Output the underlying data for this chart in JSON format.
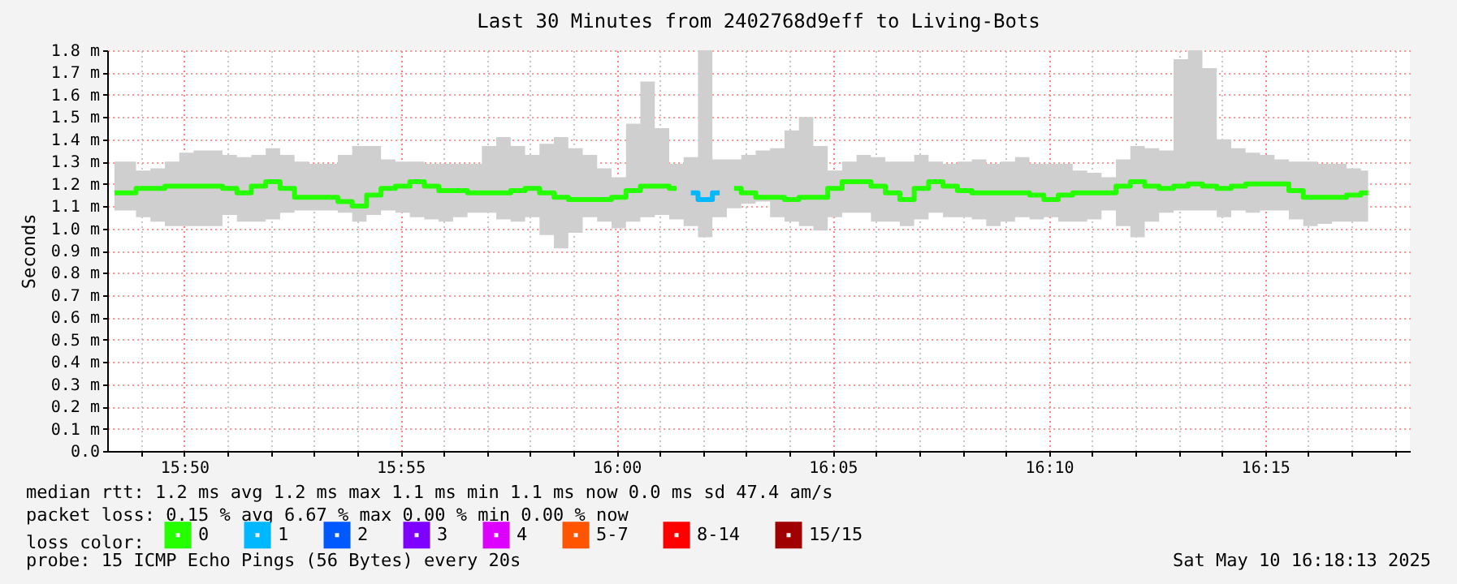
{
  "chart_data": {
    "type": "step",
    "title": "Last 30 Minutes from 2402768d9eff to Living-Bots",
    "ylabel": "Seconds",
    "legend_title": "loss color:",
    "legend": "bottom",
    "grid": true,
    "line_style": "solid",
    "marker": "none",
    "x": [
      "2025-05-10T15:48:23",
      "2025-05-10T15:48:43",
      "2025-05-10T15:49:03",
      "2025-05-10T15:49:23",
      "2025-05-10T15:49:43",
      "2025-05-10T15:50:03",
      "2025-05-10T15:50:23",
      "2025-05-10T15:50:43",
      "2025-05-10T15:51:03",
      "2025-05-10T15:51:23",
      "2025-05-10T15:51:43",
      "2025-05-10T15:52:03",
      "2025-05-10T15:52:23",
      "2025-05-10T15:52:43",
      "2025-05-10T15:53:03",
      "2025-05-10T15:53:23",
      "2025-05-10T15:53:43",
      "2025-05-10T15:54:03",
      "2025-05-10T15:54:23",
      "2025-05-10T15:54:43",
      "2025-05-10T15:55:03",
      "2025-05-10T15:55:23",
      "2025-05-10T15:55:43",
      "2025-05-10T15:56:03",
      "2025-05-10T15:56:23",
      "2025-05-10T15:56:43",
      "2025-05-10T15:57:03",
      "2025-05-10T15:57:23",
      "2025-05-10T15:57:43",
      "2025-05-10T15:58:03",
      "2025-05-10T15:58:23",
      "2025-05-10T15:58:43",
      "2025-05-10T15:59:03",
      "2025-05-10T15:59:23",
      "2025-05-10T15:59:43",
      "2025-05-10T16:00:03",
      "2025-05-10T16:00:23",
      "2025-05-10T16:00:43",
      "2025-05-10T16:01:03",
      "2025-05-10T16:01:23",
      "2025-05-10T16:01:43",
      "2025-05-10T16:02:03",
      "2025-05-10T16:02:23",
      "2025-05-10T16:02:43",
      "2025-05-10T16:03:03",
      "2025-05-10T16:03:23",
      "2025-05-10T16:03:43",
      "2025-05-10T16:04:03",
      "2025-05-10T16:04:23",
      "2025-05-10T16:04:43",
      "2025-05-10T16:05:03",
      "2025-05-10T16:05:23",
      "2025-05-10T16:05:43",
      "2025-05-10T16:06:03",
      "2025-05-10T16:06:23",
      "2025-05-10T16:06:43",
      "2025-05-10T16:07:03",
      "2025-05-10T16:07:23",
      "2025-05-10T16:07:43",
      "2025-05-10T16:08:03",
      "2025-05-10T16:08:23",
      "2025-05-10T16:08:43",
      "2025-05-10T16:09:03",
      "2025-05-10T16:09:23",
      "2025-05-10T16:09:43",
      "2025-05-10T16:10:03",
      "2025-05-10T16:10:23",
      "2025-05-10T16:10:43",
      "2025-05-10T16:11:03",
      "2025-05-10T16:11:23",
      "2025-05-10T16:11:43",
      "2025-05-10T16:12:03",
      "2025-05-10T16:12:23",
      "2025-05-10T16:12:43",
      "2025-05-10T16:13:03",
      "2025-05-10T16:13:23",
      "2025-05-10T16:13:43",
      "2025-05-10T16:14:03",
      "2025-05-10T16:14:23",
      "2025-05-10T16:14:43",
      "2025-05-10T16:15:03",
      "2025-05-10T16:15:23",
      "2025-05-10T16:15:43",
      "2025-05-10T16:16:03",
      "2025-05-10T16:16:23",
      "2025-05-10T16:16:43",
      "2025-05-10T16:17:03",
      "2025-05-10T16:17:23"
    ],
    "series": [
      {
        "name": "0",
        "color": "#26ff00",
        "values": [
          1.16,
          1.16,
          1.18,
          1.18,
          1.19,
          1.19,
          1.19,
          1.19,
          1.18,
          1.16,
          1.19,
          1.21,
          1.18,
          1.14,
          1.14,
          1.14,
          1.12,
          1.1,
          1.15,
          1.18,
          1.19,
          1.21,
          1.19,
          1.17,
          1.17,
          1.16,
          1.16,
          1.16,
          1.17,
          1.18,
          1.16,
          1.14,
          1.13,
          1.13,
          1.13,
          1.14,
          1.17,
          1.19,
          1.19,
          1.18,
          null,
          null,
          null,
          1.18,
          1.16,
          1.14,
          1.14,
          1.13,
          1.14,
          1.14,
          1.18,
          1.21,
          1.21,
          1.19,
          1.16,
          1.13,
          1.18,
          1.21,
          1.19,
          1.17,
          1.16,
          1.16,
          1.16,
          1.16,
          1.15,
          1.13,
          1.15,
          1.16,
          1.16,
          1.16,
          1.19,
          1.21,
          1.19,
          1.18,
          1.19,
          1.2,
          1.19,
          1.18,
          1.19,
          1.2,
          1.2,
          1.2,
          1.17,
          1.14,
          1.14,
          1.14,
          1.15,
          1.16
        ],
        "lower": [
          1.08,
          1.08,
          1.05,
          1.03,
          1.01,
          1.01,
          1.01,
          1.01,
          1.06,
          1.03,
          1.03,
          1.04,
          1.07,
          1.08,
          1.08,
          1.08,
          1.07,
          1.03,
          1.06,
          1.08,
          1.07,
          1.05,
          1.04,
          1.03,
          1.05,
          1.07,
          1.07,
          1.04,
          1.03,
          1.05,
          0.97,
          0.91,
          0.98,
          1.05,
          1.03,
          1.0,
          1.03,
          1.05,
          1.06,
          1.04,
          1.01,
          0.96,
          1.05,
          1.09,
          1.11,
          1.12,
          1.05,
          1.03,
          1.01,
          0.99,
          1.05,
          1.07,
          1.07,
          1.03,
          1.03,
          1.01,
          1.04,
          1.07,
          1.05,
          1.05,
          1.04,
          1.01,
          1.03,
          1.05,
          1.04,
          1.05,
          1.03,
          1.03,
          1.04,
          1.08,
          1.01,
          0.96,
          1.03,
          1.07,
          1.08,
          1.08,
          1.08,
          1.05,
          1.08,
          1.07,
          1.08,
          1.08,
          1.04,
          1.01,
          1.02,
          1.03,
          1.03,
          1.03
        ],
        "upper": [
          1.3,
          1.3,
          1.26,
          1.27,
          1.3,
          1.34,
          1.35,
          1.35,
          1.33,
          1.32,
          1.33,
          1.36,
          1.33,
          1.3,
          1.29,
          1.29,
          1.33,
          1.37,
          1.37,
          1.31,
          1.3,
          1.3,
          1.29,
          1.29,
          1.29,
          1.29,
          1.37,
          1.41,
          1.37,
          1.33,
          1.38,
          1.41,
          1.36,
          1.33,
          1.27,
          1.23,
          1.47,
          1.66,
          1.45,
          1.29,
          1.32,
          1.8,
          1.31,
          1.31,
          1.33,
          1.35,
          1.36,
          1.44,
          1.5,
          1.37,
          1.26,
          1.3,
          1.33,
          1.32,
          1.3,
          1.3,
          1.33,
          1.3,
          1.29,
          1.3,
          1.31,
          1.29,
          1.3,
          1.32,
          1.29,
          1.29,
          1.29,
          1.26,
          1.25,
          1.23,
          1.31,
          1.37,
          1.36,
          1.35,
          1.76,
          1.8,
          1.72,
          1.4,
          1.36,
          1.34,
          1.33,
          1.31,
          1.3,
          1.3,
          1.29,
          1.29,
          1.27,
          1.26
        ]
      },
      {
        "name": "1",
        "color": "#00b8ff",
        "values": [
          null,
          null,
          null,
          null,
          null,
          null,
          null,
          null,
          null,
          null,
          null,
          null,
          null,
          null,
          null,
          null,
          null,
          null,
          null,
          null,
          null,
          null,
          null,
          null,
          null,
          null,
          null,
          null,
          null,
          null,
          null,
          null,
          null,
          null,
          null,
          null,
          null,
          null,
          null,
          null,
          1.16,
          1.13,
          1.16,
          null,
          null,
          null,
          null,
          null,
          null,
          null,
          null,
          null,
          null,
          null,
          null,
          null,
          null,
          null,
          null,
          null,
          null,
          null,
          null,
          null,
          null,
          null,
          null,
          null,
          null,
          null,
          null,
          null,
          null,
          null,
          null,
          null,
          null,
          null,
          null,
          null,
          null,
          null,
          null,
          null,
          null,
          null,
          null,
          null
        ]
      },
      {
        "name": "2",
        "color": "#0059ff",
        "values": [
          null,
          null,
          null,
          null,
          null,
          null,
          null,
          null,
          null,
          null,
          null,
          null,
          null,
          null,
          null,
          null,
          null,
          null,
          null,
          null,
          null,
          null,
          null,
          null,
          null,
          null,
          null,
          null,
          null,
          null,
          null,
          null,
          null,
          null,
          null,
          null,
          null,
          null,
          null,
          null,
          null,
          null,
          null,
          null,
          null,
          null,
          null,
          null,
          null,
          null,
          null,
          null,
          null,
          null,
          null,
          null,
          null,
          null,
          null,
          null,
          null,
          null,
          null,
          null,
          null,
          null,
          null,
          null,
          null,
          null,
          null,
          null,
          null,
          null,
          null,
          null,
          null,
          null,
          null,
          null,
          null,
          null,
          null,
          null,
          null,
          null,
          null,
          null
        ]
      },
      {
        "name": "3",
        "color": "#7e00ff",
        "values": [
          null,
          null,
          null,
          null,
          null,
          null,
          null,
          null,
          null,
          null,
          null,
          null,
          null,
          null,
          null,
          null,
          null,
          null,
          null,
          null,
          null,
          null,
          null,
          null,
          null,
          null,
          null,
          null,
          null,
          null,
          null,
          null,
          null,
          null,
          null,
          null,
          null,
          null,
          null,
          null,
          null,
          null,
          null,
          null,
          null,
          null,
          null,
          null,
          null,
          null,
          null,
          null,
          null,
          null,
          null,
          null,
          null,
          null,
          null,
          null,
          null,
          null,
          null,
          null,
          null,
          null,
          null,
          null,
          null,
          null,
          null,
          null,
          null,
          null,
          null,
          null,
          null,
          null,
          null,
          null,
          null,
          null,
          null,
          null,
          null,
          null,
          null,
          null
        ]
      },
      {
        "name": "4",
        "color": "#dd00ff",
        "values": [
          null,
          null,
          null,
          null,
          null,
          null,
          null,
          null,
          null,
          null,
          null,
          null,
          null,
          null,
          null,
          null,
          null,
          null,
          null,
          null,
          null,
          null,
          null,
          null,
          null,
          null,
          null,
          null,
          null,
          null,
          null,
          null,
          null,
          null,
          null,
          null,
          null,
          null,
          null,
          null,
          null,
          null,
          null,
          null,
          null,
          null,
          null,
          null,
          null,
          null,
          null,
          null,
          null,
          null,
          null,
          null,
          null,
          null,
          null,
          null,
          null,
          null,
          null,
          null,
          null,
          null,
          null,
          null,
          null,
          null,
          null,
          null,
          null,
          null,
          null,
          null,
          null,
          null,
          null,
          null,
          null,
          null,
          null,
          null,
          null,
          null,
          null,
          null
        ]
      },
      {
        "name": "5-7",
        "color": "#ff5500",
        "values": [
          null,
          null,
          null,
          null,
          null,
          null,
          null,
          null,
          null,
          null,
          null,
          null,
          null,
          null,
          null,
          null,
          null,
          null,
          null,
          null,
          null,
          null,
          null,
          null,
          null,
          null,
          null,
          null,
          null,
          null,
          null,
          null,
          null,
          null,
          null,
          null,
          null,
          null,
          null,
          null,
          null,
          null,
          null,
          null,
          null,
          null,
          null,
          null,
          null,
          null,
          null,
          null,
          null,
          null,
          null,
          null,
          null,
          null,
          null,
          null,
          null,
          null,
          null,
          null,
          null,
          null,
          null,
          null,
          null,
          null,
          null,
          null,
          null,
          null,
          null,
          null,
          null,
          null,
          null,
          null,
          null,
          null,
          null,
          null,
          null,
          null,
          null,
          null
        ]
      },
      {
        "name": "8-14",
        "color": "#ff0000",
        "values": [
          null,
          null,
          null,
          null,
          null,
          null,
          null,
          null,
          null,
          null,
          null,
          null,
          null,
          null,
          null,
          null,
          null,
          null,
          null,
          null,
          null,
          null,
          null,
          null,
          null,
          null,
          null,
          null,
          null,
          null,
          null,
          null,
          null,
          null,
          null,
          null,
          null,
          null,
          null,
          null,
          null,
          null,
          null,
          null,
          null,
          null,
          null,
          null,
          null,
          null,
          null,
          null,
          null,
          null,
          null,
          null,
          null,
          null,
          null,
          null,
          null,
          null,
          null,
          null,
          null,
          null,
          null,
          null,
          null,
          null,
          null,
          null,
          null,
          null,
          null,
          null,
          null,
          null,
          null,
          null,
          null,
          null,
          null,
          null,
          null,
          null,
          null,
          null
        ]
      },
      {
        "name": "15/15",
        "color": "#a10000",
        "values": [
          null,
          null,
          null,
          null,
          null,
          null,
          null,
          null,
          null,
          null,
          null,
          null,
          null,
          null,
          null,
          null,
          null,
          null,
          null,
          null,
          null,
          null,
          null,
          null,
          null,
          null,
          null,
          null,
          null,
          null,
          null,
          null,
          null,
          null,
          null,
          null,
          null,
          null,
          null,
          null,
          null,
          null,
          null,
          null,
          null,
          null,
          null,
          null,
          null,
          null,
          null,
          null,
          null,
          null,
          null,
          null,
          null,
          null,
          null,
          null,
          null,
          null,
          null,
          null,
          null,
          null,
          null,
          null,
          null,
          null,
          null,
          null,
          null,
          null,
          null,
          null,
          null,
          null,
          null,
          null,
          null,
          null,
          null,
          null,
          null,
          null,
          null,
          null
        ]
      }
    ],
    "xlim": [
      "2025-05-10T15:48:13",
      "2025-05-10T16:18:21"
    ],
    "xticks": [
      {
        "value": "2025-05-10T15:49",
        "label": null
      },
      {
        "value": "2025-05-10T15:50",
        "label": "15:50"
      },
      {
        "value": "2025-05-10T15:51",
        "label": null
      },
      {
        "value": "2025-05-10T15:52",
        "label": null
      },
      {
        "value": "2025-05-10T15:53",
        "label": null
      },
      {
        "value": "2025-05-10T15:54",
        "label": null
      },
      {
        "value": "2025-05-10T15:55",
        "label": "15:55"
      },
      {
        "value": "2025-05-10T15:56",
        "label": null
      },
      {
        "value": "2025-05-10T15:57",
        "label": null
      },
      {
        "value": "2025-05-10T15:58",
        "label": null
      },
      {
        "value": "2025-05-10T15:59",
        "label": null
      },
      {
        "value": "2025-05-10T16:00",
        "label": "16:00"
      },
      {
        "value": "2025-05-10T16:01",
        "label": null
      },
      {
        "value": "2025-05-10T16:02",
        "label": null
      },
      {
        "value": "2025-05-10T16:03",
        "label": null
      },
      {
        "value": "2025-05-10T16:04",
        "label": null
      },
      {
        "value": "2025-05-10T16:05",
        "label": "16:05"
      },
      {
        "value": "2025-05-10T16:06",
        "label": null
      },
      {
        "value": "2025-05-10T16:07",
        "label": null
      },
      {
        "value": "2025-05-10T16:08",
        "label": null
      },
      {
        "value": "2025-05-10T16:09",
        "label": null
      },
      {
        "value": "2025-05-10T16:10",
        "label": "16:10"
      },
      {
        "value": "2025-05-10T16:11",
        "label": null
      },
      {
        "value": "2025-05-10T16:12",
        "label": null
      },
      {
        "value": "2025-05-10T16:13",
        "label": null
      },
      {
        "value": "2025-05-10T16:14",
        "label": null
      },
      {
        "value": "2025-05-10T16:15",
        "label": "16:15"
      },
      {
        "value": "2025-05-10T16:16",
        "label": null
      },
      {
        "value": "2025-05-10T16:17",
        "label": null
      },
      {
        "value": "2025-05-10T16:18",
        "label": null
      }
    ],
    "ylim": [
      0,
      1.8
    ],
    "yticks": [
      {
        "value": 0,
        "label": "0.0"
      },
      {
        "value": 0.1,
        "label": "0.1 m"
      },
      {
        "value": 0.2,
        "label": "0.2 m"
      },
      {
        "value": 0.3,
        "label": "0.3 m"
      },
      {
        "value": 0.4,
        "label": "0.4 m"
      },
      {
        "value": 0.5,
        "label": "0.5 m"
      },
      {
        "value": 0.6,
        "label": "0.6 m"
      },
      {
        "value": 0.7,
        "label": "0.7 m"
      },
      {
        "value": 0.8,
        "label": "0.8 m"
      },
      {
        "value": 0.9,
        "label": "0.9 m"
      },
      {
        "value": 1.0,
        "label": "1.0 m"
      },
      {
        "value": 1.1,
        "label": "1.1 m"
      },
      {
        "value": 1.2,
        "label": "1.2 m"
      },
      {
        "value": 1.3,
        "label": "1.3 m"
      },
      {
        "value": 1.4,
        "label": "1.4 m"
      },
      {
        "value": 1.5,
        "label": "1.5 m"
      },
      {
        "value": 1.6,
        "label": "1.6 m"
      },
      {
        "value": 1.7,
        "label": "1.7 m"
      },
      {
        "value": 1.8,
        "label": "1.8 m"
      }
    ],
    "annotations": [
      "median rtt:  1.2 ms avg  1.2 ms max  1.1 ms min  1.1 ms now  0.0 ms sd  47.4   am/s",
      "packet loss: 0.15 % avg  6.67 % max  0.00 % min  0.00 % now",
      "probe:       15 ICMP Echo Pings (56 Bytes) every 20s",
      "Sat May 10 16:18:13 2025"
    ]
  }
}
